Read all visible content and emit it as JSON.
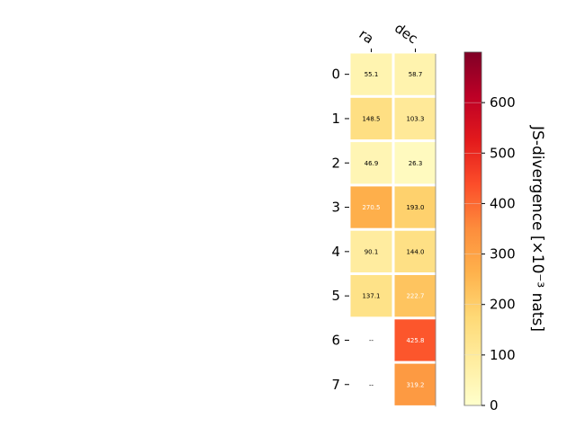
{
  "chart_data": {
    "type": "heatmap",
    "columns": [
      "ra",
      "dec"
    ],
    "rows": [
      "0",
      "1",
      "2",
      "3",
      "4",
      "5",
      "6",
      "7"
    ],
    "values": [
      [
        55.1,
        58.7
      ],
      [
        148.5,
        103.3
      ],
      [
        46.9,
        26.3
      ],
      [
        270.5,
        193.0
      ],
      [
        90.1,
        144.0
      ],
      [
        137.1,
        222.7
      ],
      [
        null,
        425.8
      ],
      [
        null,
        319.2
      ]
    ],
    "cell_labels": [
      [
        "55.1",
        "58.7"
      ],
      [
        "148.5",
        "103.3"
      ],
      [
        "46.9",
        "26.3"
      ],
      [
        "270.5",
        "193.0"
      ],
      [
        "90.1",
        "144.0"
      ],
      [
        "137.1",
        "222.7"
      ],
      [
        "--",
        "425.8"
      ],
      [
        "--",
        "319.2"
      ]
    ],
    "colormap": "YlOrRd",
    "colorbar": {
      "label": "JS-divergence [×10⁻³ nats]",
      "range": [
        0,
        700
      ],
      "ticks": [
        "0",
        "100",
        "200",
        "300",
        "400",
        "500",
        "600"
      ]
    }
  }
}
